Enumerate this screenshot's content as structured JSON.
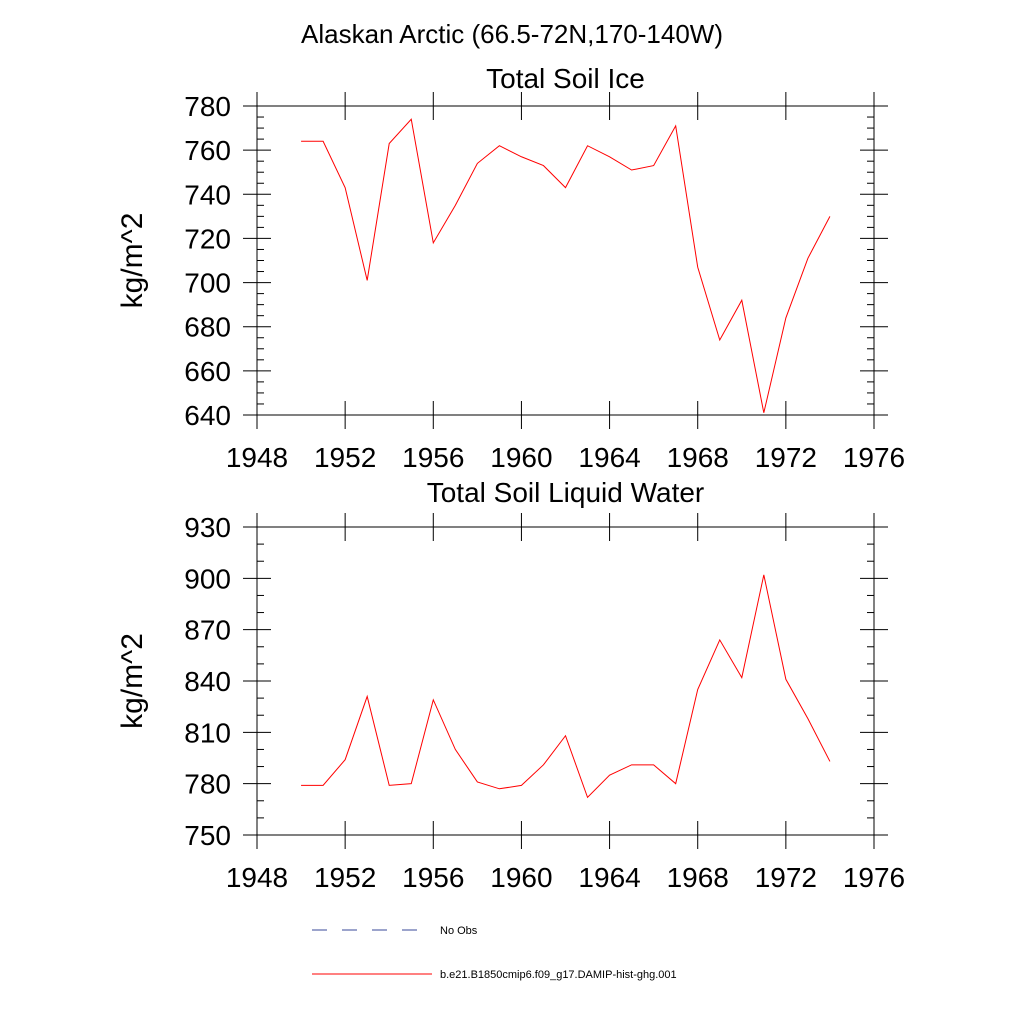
{
  "figure": {
    "title": "Alaskan Arctic (66.5-72N,170-140W)"
  },
  "colors": {
    "model_line": "#ff0000",
    "obs_line": "#3a4a9a",
    "axis": "#000000"
  },
  "chart_data": [
    {
      "type": "line",
      "title": "Total Soil Ice",
      "xlabel": "",
      "ylabel": "kg/m^2",
      "xlim": [
        1948,
        1976
      ],
      "ylim": [
        640,
        780
      ],
      "xticks": [
        1948,
        1952,
        1956,
        1960,
        1964,
        1968,
        1972,
        1976
      ],
      "yticks": [
        640,
        660,
        680,
        700,
        720,
        740,
        760,
        780
      ],
      "x_minor_step": 1,
      "y_minor_step": 5,
      "grid": false,
      "series": [
        {
          "name": "b.e21.B1850cmip6.f09_g17.DAMIP-hist-ghg.001",
          "x": [
            1950,
            1951,
            1952,
            1953,
            1954,
            1955,
            1956,
            1957,
            1958,
            1959,
            1960,
            1961,
            1962,
            1963,
            1964,
            1965,
            1966,
            1967,
            1968,
            1969,
            1970,
            1971,
            1972,
            1973,
            1974
          ],
          "values": [
            764,
            764,
            743,
            701,
            763,
            774,
            718,
            735,
            754,
            762,
            757,
            753,
            743,
            762,
            757,
            751,
            753,
            771,
            707,
            674,
            692,
            641,
            684,
            711,
            730
          ]
        }
      ]
    },
    {
      "type": "line",
      "title": "Total Soil Liquid Water",
      "xlabel": "",
      "ylabel": "kg/m^2",
      "xlim": [
        1948,
        1976
      ],
      "ylim": [
        750,
        930
      ],
      "xticks": [
        1948,
        1952,
        1956,
        1960,
        1964,
        1968,
        1972,
        1976
      ],
      "yticks": [
        750,
        780,
        810,
        840,
        870,
        900,
        930
      ],
      "x_minor_step": 1,
      "y_minor_step": 10,
      "grid": false,
      "series": [
        {
          "name": "b.e21.B1850cmip6.f09_g17.DAMIP-hist-ghg.001",
          "x": [
            1950,
            1951,
            1952,
            1953,
            1954,
            1955,
            1956,
            1957,
            1958,
            1959,
            1960,
            1961,
            1962,
            1963,
            1964,
            1965,
            1966,
            1967,
            1968,
            1969,
            1970,
            1971,
            1972,
            1973,
            1974
          ],
          "values": [
            779,
            779,
            794,
            831,
            779,
            780,
            829,
            800,
            781,
            777,
            779,
            791,
            808,
            772,
            785,
            791,
            791,
            780,
            835,
            864,
            842,
            902,
            841,
            818,
            793
          ]
        }
      ]
    }
  ],
  "legend": {
    "placement": "bottom-center",
    "items": [
      {
        "label": "No Obs",
        "style": "dashed"
      },
      {
        "label": "b.e21.B1850cmip6.f09_g17.DAMIP-hist-ghg.001",
        "style": "solid"
      }
    ]
  }
}
